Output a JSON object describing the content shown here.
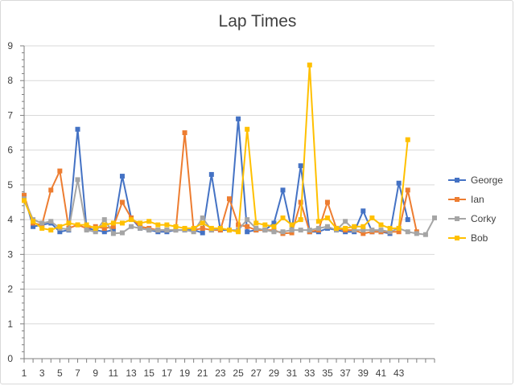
{
  "chart_data": {
    "type": "line",
    "title": "Lap Times",
    "xlabel": "",
    "ylabel": "",
    "ylim": [
      0,
      9
    ],
    "yticks": [
      0,
      1,
      2,
      3,
      4,
      5,
      6,
      7,
      8,
      9
    ],
    "xlim": [
      1,
      47
    ],
    "xticks": [
      1,
      3,
      5,
      7,
      9,
      11,
      13,
      15,
      17,
      19,
      21,
      23,
      25,
      27,
      29,
      31,
      33,
      35,
      37,
      39,
      41,
      43
    ],
    "grid": true,
    "legend_position": "right",
    "series": [
      {
        "name": "George",
        "color": "#4472c4",
        "values": [
          4.7,
          3.8,
          3.85,
          3.9,
          3.65,
          3.7,
          6.6,
          3.75,
          3.7,
          3.65,
          3.7,
          5.25,
          4.05,
          3.75,
          3.7,
          3.65,
          3.65,
          3.7,
          3.7,
          3.7,
          3.62,
          5.3,
          3.7,
          3.7,
          6.9,
          3.65,
          3.7,
          3.7,
          3.9,
          4.85,
          3.7,
          5.55,
          3.65,
          3.65,
          3.75,
          3.7,
          3.65,
          3.65,
          4.25,
          3.65,
          3.65,
          3.6,
          5.05,
          4.0
        ]
      },
      {
        "name": "Ian",
        "color": "#ed7d31",
        "values": [
          4.7,
          3.9,
          3.85,
          4.85,
          5.4,
          3.75,
          3.85,
          3.75,
          3.8,
          3.75,
          3.8,
          4.5,
          4.05,
          3.8,
          3.75,
          3.7,
          3.7,
          3.7,
          6.5,
          3.7,
          3.75,
          3.7,
          3.7,
          4.6,
          3.85,
          3.8,
          3.7,
          3.7,
          3.7,
          3.6,
          3.62,
          4.5,
          3.65,
          3.7,
          4.5,
          3.75,
          3.7,
          3.7,
          3.6,
          3.65,
          3.65,
          3.65,
          3.65,
          4.85,
          3.65
        ]
      },
      {
        "name": "Corky",
        "color": "#a5a5a5",
        "values": [
          4.6,
          4.0,
          3.9,
          3.95,
          3.75,
          3.72,
          5.15,
          3.7,
          3.65,
          4.0,
          3.6,
          3.62,
          3.8,
          3.75,
          3.7,
          3.7,
          3.7,
          3.7,
          3.7,
          3.65,
          4.05,
          3.7,
          3.75,
          3.7,
          3.7,
          4.0,
          3.75,
          3.7,
          3.65,
          3.65,
          3.7,
          3.7,
          3.7,
          3.75,
          3.8,
          3.7,
          3.95,
          3.7,
          3.7,
          3.7,
          3.7,
          3.65,
          3.75,
          3.65,
          3.6,
          3.57,
          4.05
        ]
      },
      {
        "name": "Bob",
        "color": "#ffc000",
        "values": [
          4.55,
          3.95,
          3.75,
          3.7,
          3.8,
          3.9,
          3.85,
          3.85,
          3.75,
          3.85,
          3.9,
          3.9,
          4.0,
          3.9,
          3.95,
          3.85,
          3.85,
          3.8,
          3.75,
          3.75,
          3.9,
          3.75,
          3.75,
          3.7,
          3.65,
          6.6,
          3.9,
          3.85,
          3.8,
          4.05,
          3.85,
          4.0,
          8.45,
          3.95,
          4.05,
          3.75,
          3.75,
          3.8,
          3.8,
          4.05,
          3.85,
          3.75,
          3.75,
          6.3
        ]
      }
    ]
  }
}
